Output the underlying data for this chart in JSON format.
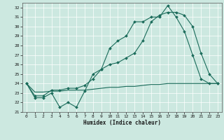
{
  "xlabel": "Humidex (Indice chaleur)",
  "xlim": [
    -0.5,
    23.5
  ],
  "ylim": [
    21,
    32.5
  ],
  "yticks": [
    21,
    22,
    23,
    24,
    25,
    26,
    27,
    28,
    29,
    30,
    31,
    32
  ],
  "xticks": [
    0,
    1,
    2,
    3,
    4,
    5,
    6,
    7,
    8,
    9,
    10,
    11,
    12,
    13,
    14,
    15,
    16,
    17,
    18,
    19,
    20,
    21,
    22,
    23
  ],
  "bg_color": "#cce8e0",
  "line_color": "#1a6b5a",
  "grid_color": "#ffffff",
  "line1_y": [
    24.0,
    22.5,
    22.5,
    23.0,
    21.5,
    22.0,
    21.5,
    23.2,
    25.0,
    25.5,
    27.7,
    28.5,
    29.0,
    30.5,
    30.5,
    31.0,
    31.0,
    32.2,
    31.0,
    29.5,
    27.0,
    24.5,
    24.0,
    24.0
  ],
  "line2_y": [
    24.0,
    22.7,
    22.7,
    23.3,
    23.3,
    23.5,
    23.5,
    23.8,
    24.5,
    25.5,
    26.0,
    26.2,
    26.7,
    27.2,
    28.5,
    30.5,
    31.2,
    31.5,
    31.5,
    31.2,
    30.0,
    27.2,
    25.0,
    24.0
  ],
  "line3_y": [
    24.0,
    23.1,
    23.1,
    23.2,
    23.2,
    23.3,
    23.3,
    23.3,
    23.4,
    23.5,
    23.6,
    23.6,
    23.7,
    23.7,
    23.8,
    23.9,
    23.9,
    24.0,
    24.0,
    24.0,
    24.0,
    24.0,
    24.0,
    24.0
  ],
  "marker_size": 2.0,
  "linewidth": 0.8
}
